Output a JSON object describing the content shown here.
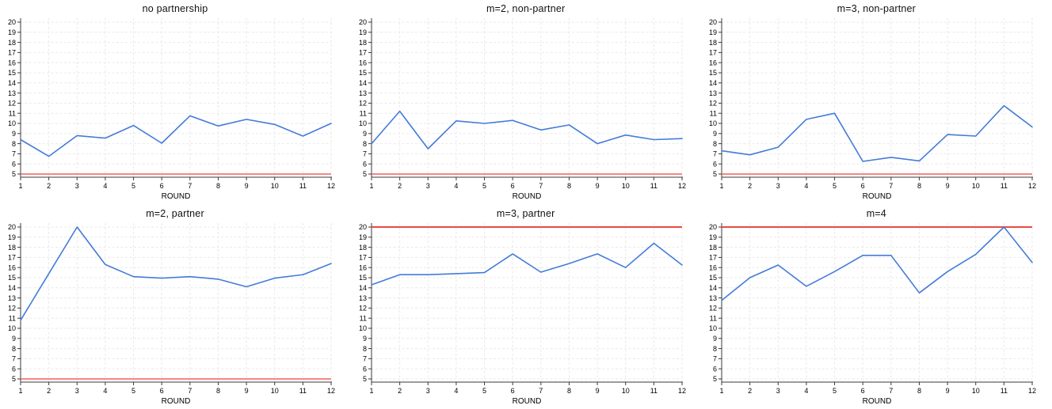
{
  "figure": {
    "xlabel": "ROUND",
    "x_ticks": [
      1,
      2,
      3,
      4,
      5,
      6,
      7,
      8,
      9,
      10,
      11,
      12
    ],
    "y_ticks": [
      5,
      6,
      7,
      8,
      9,
      10,
      11,
      12,
      13,
      14,
      15,
      16,
      17,
      18,
      19,
      20
    ],
    "colors": {
      "series": "#447bd8",
      "ref_low": "#f2605c",
      "ref_high": "#e84b45",
      "grid": "#e9e9e9",
      "axis": "#3a3a3a",
      "text": "#000000",
      "background": "#ffffff"
    }
  },
  "chart_data": [
    {
      "type": "line",
      "title": "no partnership",
      "xlabel": "ROUND",
      "x": [
        1,
        2,
        3,
        4,
        5,
        6,
        7,
        8,
        9,
        10,
        11,
        12
      ],
      "values": [
        8.4,
        6.75,
        8.8,
        8.55,
        9.8,
        8.05,
        10.75,
        9.75,
        10.4,
        9.9,
        8.75,
        10.0
      ],
      "ref_line": {
        "value": 5,
        "color": "#f2605c"
      },
      "ylim": [
        5,
        20
      ],
      "xlim": [
        1,
        12
      ],
      "grid": true,
      "legend": "none"
    },
    {
      "type": "line",
      "title": "m=2, non-partner",
      "xlabel": "ROUND",
      "x": [
        1,
        2,
        3,
        4,
        5,
        6,
        7,
        8,
        9,
        10,
        11,
        12
      ],
      "values": [
        8.0,
        11.2,
        7.5,
        10.25,
        10.0,
        10.3,
        9.35,
        9.85,
        8.0,
        8.85,
        8.4,
        8.5
      ],
      "ref_line": {
        "value": 5,
        "color": "#f2605c"
      },
      "ylim": [
        5,
        20
      ],
      "xlim": [
        1,
        12
      ],
      "grid": true,
      "legend": "none"
    },
    {
      "type": "line",
      "title": "m=3, non-partner",
      "xlabel": "ROUND",
      "x": [
        1,
        2,
        3,
        4,
        5,
        6,
        7,
        8,
        9,
        10,
        11,
        12
      ],
      "values": [
        7.3,
        6.9,
        7.65,
        10.4,
        11.0,
        6.25,
        6.65,
        6.3,
        8.9,
        8.75,
        11.75,
        9.65
      ],
      "ref_line": {
        "value": 5,
        "color": "#f2605c"
      },
      "ylim": [
        5,
        20
      ],
      "xlim": [
        1,
        12
      ],
      "grid": true,
      "legend": "none"
    },
    {
      "type": "line",
      "title": "m=2, partner",
      "xlabel": "ROUND",
      "x": [
        1,
        2,
        3,
        4,
        5,
        6,
        7,
        8,
        9,
        10,
        11,
        12
      ],
      "values": [
        10.8,
        15.4,
        20.0,
        16.3,
        15.1,
        14.95,
        15.1,
        14.85,
        14.1,
        14.95,
        15.3,
        16.4
      ],
      "ref_line": {
        "value": 5,
        "color": "#f2605c"
      },
      "ylim": [
        5,
        20
      ],
      "xlim": [
        1,
        12
      ],
      "grid": true,
      "legend": "none"
    },
    {
      "type": "line",
      "title": "m=3, partner",
      "xlabel": "ROUND",
      "x": [
        1,
        2,
        3,
        4,
        5,
        6,
        7,
        8,
        9,
        10,
        11,
        12
      ],
      "values": [
        14.3,
        15.3,
        15.3,
        15.4,
        15.5,
        17.35,
        15.55,
        16.4,
        17.35,
        16.0,
        18.4,
        16.25
      ],
      "ref_line": {
        "value": 20,
        "color": "#e84b45"
      },
      "ylim": [
        5,
        20
      ],
      "xlim": [
        1,
        12
      ],
      "grid": true,
      "legend": "none"
    },
    {
      "type": "line",
      "title": "m=4",
      "xlabel": "ROUND",
      "x": [
        1,
        2,
        3,
        4,
        5,
        6,
        7,
        8,
        9,
        10,
        11,
        12
      ],
      "values": [
        12.75,
        15.0,
        16.25,
        14.15,
        15.6,
        17.2,
        17.2,
        13.5,
        15.6,
        17.3,
        20.0,
        16.5
      ],
      "ref_line": {
        "value": 20,
        "color": "#e84b45"
      },
      "ylim": [
        5,
        20
      ],
      "xlim": [
        1,
        12
      ],
      "grid": true,
      "legend": "none"
    }
  ]
}
